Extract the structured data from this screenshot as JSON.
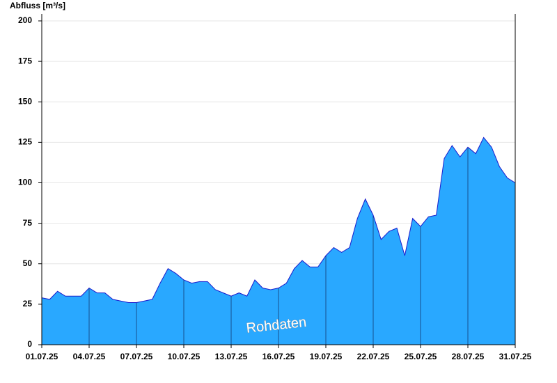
{
  "chart_data": {
    "type": "area",
    "y_label": "Abfluss [m³/s]",
    "annotation": "Rohdaten",
    "color": "#29a8ff",
    "line_color": "#1a1acc",
    "x": [
      0,
      0.5,
      1,
      1.5,
      2,
      2.5,
      3,
      3.5,
      4,
      4.5,
      5,
      5.5,
      6,
      6.5,
      7,
      7.5,
      8,
      8.5,
      9,
      9.5,
      10,
      10.5,
      11,
      11.5,
      12,
      12.5,
      13,
      13.5,
      14,
      14.5,
      15,
      15.5,
      16,
      16.5,
      17,
      17.5,
      18,
      18.5,
      19,
      19.5,
      20,
      20.5,
      21,
      21.5,
      22,
      22.5,
      23,
      23.5,
      24,
      24.5,
      25,
      25.5,
      26,
      26.5,
      27,
      27.5,
      28,
      28.5,
      29,
      29.5,
      30
    ],
    "values": [
      29,
      28,
      33,
      30,
      30,
      30,
      35,
      32,
      32,
      28,
      27,
      26,
      26,
      27,
      28,
      38,
      47,
      44,
      40,
      38,
      39,
      39,
      34,
      32,
      30,
      32,
      30,
      40,
      35,
      34,
      35,
      38,
      47,
      52,
      48,
      48,
      55,
      60,
      57,
      60,
      78,
      90,
      80,
      65,
      70,
      72,
      55,
      78,
      73,
      79,
      80,
      115,
      123,
      116,
      122,
      118,
      128,
      122,
      110,
      103,
      100
    ],
    "xlim": [
      0,
      30
    ],
    "xticks": [
      {
        "value": 0,
        "label": "01.07.25"
      },
      {
        "value": 3,
        "label": "04.07.25"
      },
      {
        "value": 6,
        "label": "07.07.25"
      },
      {
        "value": 9,
        "label": "10.07.25"
      },
      {
        "value": 12,
        "label": "13.07.25"
      },
      {
        "value": 15,
        "label": "16.07.25"
      },
      {
        "value": 18,
        "label": "19.07.25"
      },
      {
        "value": 21,
        "label": "22.07.25"
      },
      {
        "value": 24,
        "label": "25.07.25"
      },
      {
        "value": 27,
        "label": "28.07.25"
      },
      {
        "value": 30,
        "label": "31.07.25"
      }
    ],
    "ylim": [
      0,
      200
    ],
    "yticks": [
      0,
      25,
      50,
      75,
      100,
      125,
      150,
      175,
      200
    ],
    "grid": true
  }
}
